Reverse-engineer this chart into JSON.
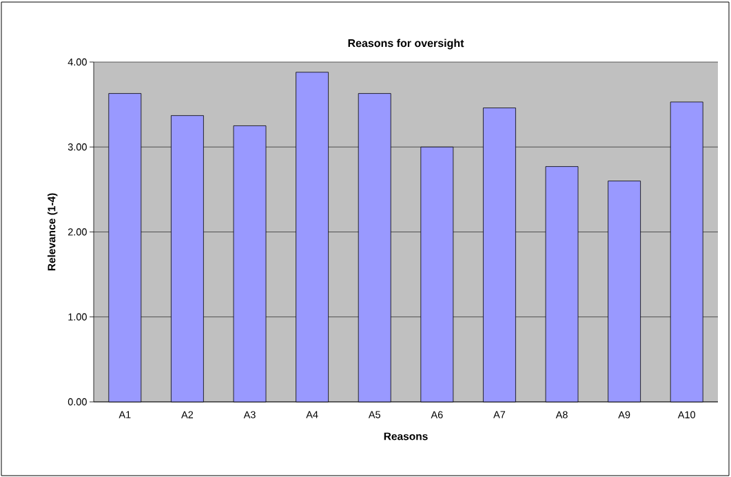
{
  "chart_data": {
    "type": "bar",
    "title": "Reasons for oversight",
    "xlabel": "Reasons",
    "ylabel": "Relevance (1-4)",
    "categories": [
      "A1",
      "A2",
      "A3",
      "A4",
      "A5",
      "A6",
      "A7",
      "A8",
      "A9",
      "A10"
    ],
    "values": [
      3.63,
      3.37,
      3.25,
      3.88,
      3.63,
      3.0,
      3.46,
      2.77,
      2.6,
      3.53
    ],
    "color": "#9999ff",
    "ylim": [
      0,
      4
    ],
    "yticks": [
      {
        "value": 0,
        "label": "0.00"
      },
      {
        "value": 1,
        "label": "1.00"
      },
      {
        "value": 2,
        "label": "2.00"
      },
      {
        "value": 3,
        "label": "3.00"
      },
      {
        "value": 4,
        "label": "4.00"
      }
    ],
    "grid": "y"
  }
}
